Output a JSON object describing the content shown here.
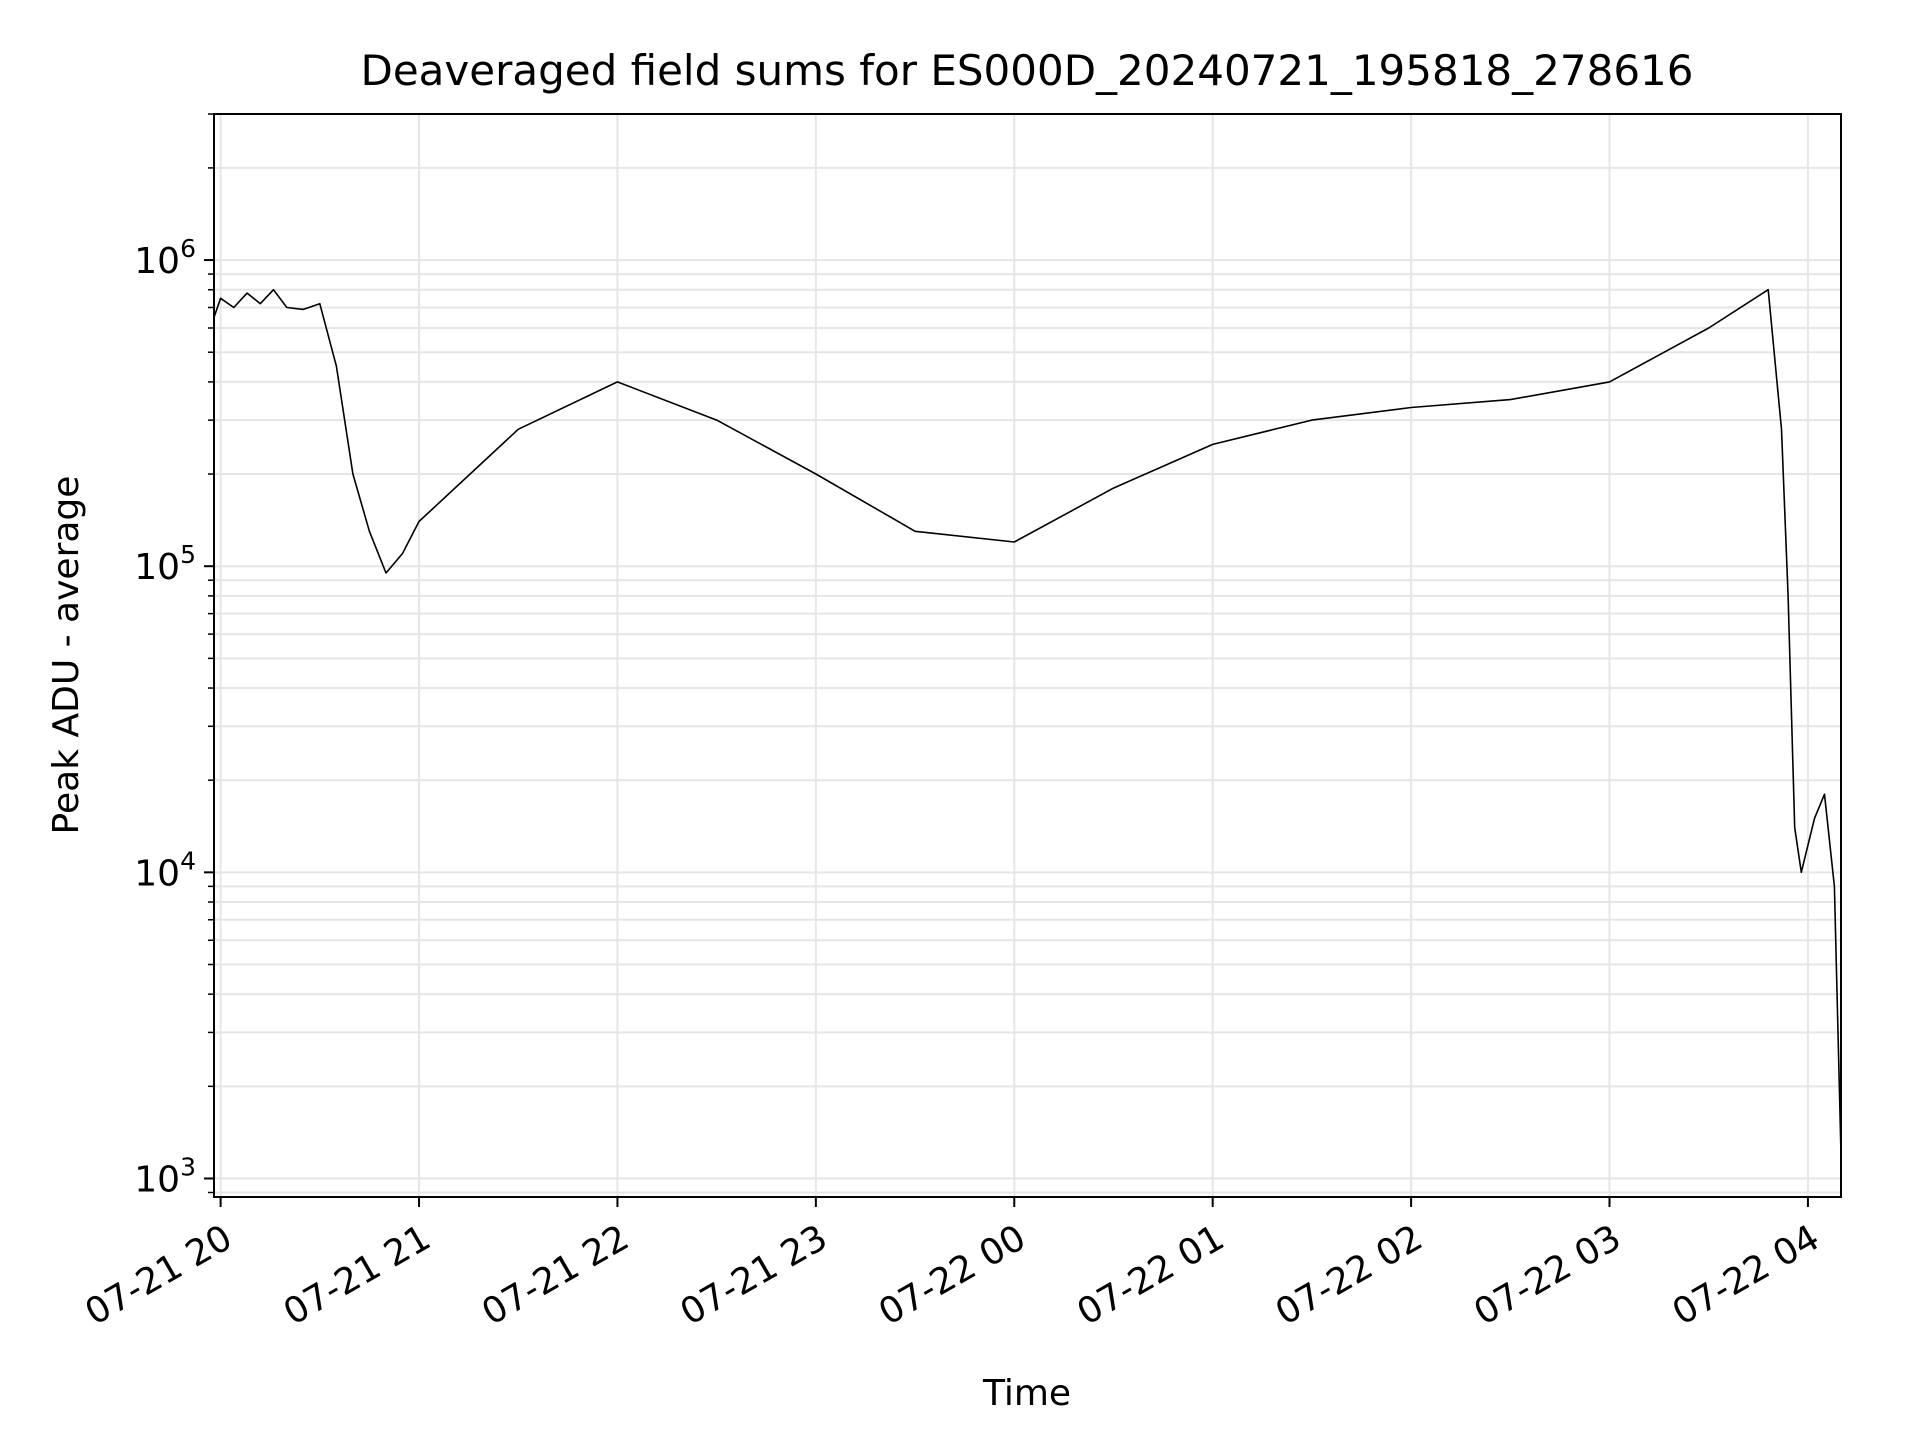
{
  "chart_data": {
    "type": "line",
    "title": "Deaveraged field sums for ES000D_20240721_195818_278616",
    "xlabel": "Time",
    "ylabel": "Peak ADU - average",
    "yscale": "log",
    "ylim": [
      870,
      3000000
    ],
    "xlim": [
      "2024-07-21 19:58",
      "2024-07-22 04:10"
    ],
    "grid": true,
    "line_color": "#000000",
    "x_ticks": [
      {
        "value": "2024-07-21 20:00",
        "label": "07-21 20"
      },
      {
        "value": "2024-07-21 21:00",
        "label": "07-21 21"
      },
      {
        "value": "2024-07-21 22:00",
        "label": "07-21 22"
      },
      {
        "value": "2024-07-21 23:00",
        "label": "07-21 23"
      },
      {
        "value": "2024-07-22 00:00",
        "label": "07-22 00"
      },
      {
        "value": "2024-07-22 01:00",
        "label": "07-22 01"
      },
      {
        "value": "2024-07-22 02:00",
        "label": "07-22 02"
      },
      {
        "value": "2024-07-22 03:00",
        "label": "07-22 03"
      },
      {
        "value": "2024-07-22 04:00",
        "label": "07-22 04"
      }
    ],
    "y_ticks": [
      {
        "value": 1000,
        "base": "10",
        "exp": "3"
      },
      {
        "value": 10000,
        "base": "10",
        "exp": "4"
      },
      {
        "value": 100000,
        "base": "10",
        "exp": "5"
      },
      {
        "value": 1000000,
        "base": "10",
        "exp": "6"
      }
    ],
    "series": [
      {
        "points": [
          {
            "x": "2024-07-21 19:58",
            "y": 650000
          },
          {
            "x": "2024-07-21 20:00",
            "y": 750000
          },
          {
            "x": "2024-07-21 20:04",
            "y": 700000
          },
          {
            "x": "2024-07-21 20:08",
            "y": 780000
          },
          {
            "x": "2024-07-21 20:12",
            "y": 720000
          },
          {
            "x": "2024-07-21 20:16",
            "y": 800000
          },
          {
            "x": "2024-07-21 20:20",
            "y": 700000
          },
          {
            "x": "2024-07-21 20:25",
            "y": 690000
          },
          {
            "x": "2024-07-21 20:30",
            "y": 720000
          },
          {
            "x": "2024-07-21 20:35",
            "y": 450000
          },
          {
            "x": "2024-07-21 20:40",
            "y": 200000
          },
          {
            "x": "2024-07-21 20:45",
            "y": 130000
          },
          {
            "x": "2024-07-21 20:50",
            "y": 95000
          },
          {
            "x": "2024-07-21 20:55",
            "y": 110000
          },
          {
            "x": "2024-07-21 21:00",
            "y": 140000
          },
          {
            "x": "2024-07-21 21:30",
            "y": 280000
          },
          {
            "x": "2024-07-21 22:00",
            "y": 400000
          },
          {
            "x": "2024-07-21 22:30",
            "y": 300000
          },
          {
            "x": "2024-07-21 23:00",
            "y": 200000
          },
          {
            "x": "2024-07-21 23:30",
            "y": 130000
          },
          {
            "x": "2024-07-22 00:00",
            "y": 120000
          },
          {
            "x": "2024-07-22 00:30",
            "y": 180000
          },
          {
            "x": "2024-07-22 01:00",
            "y": 250000
          },
          {
            "x": "2024-07-22 01:30",
            "y": 300000
          },
          {
            "x": "2024-07-22 02:00",
            "y": 330000
          },
          {
            "x": "2024-07-22 02:30",
            "y": 350000
          },
          {
            "x": "2024-07-22 03:00",
            "y": 400000
          },
          {
            "x": "2024-07-22 03:30",
            "y": 600000
          },
          {
            "x": "2024-07-22 03:48",
            "y": 800000
          },
          {
            "x": "2024-07-22 03:52",
            "y": 280000
          },
          {
            "x": "2024-07-22 03:54",
            "y": 80000
          },
          {
            "x": "2024-07-22 03:56",
            "y": 14000
          },
          {
            "x": "2024-07-22 03:58",
            "y": 10000
          },
          {
            "x": "2024-07-22 04:02",
            "y": 15000
          },
          {
            "x": "2024-07-22 04:05",
            "y": 18000
          },
          {
            "x": "2024-07-22 04:08",
            "y": 9000
          },
          {
            "x": "2024-07-22 04:10",
            "y": 1200
          }
        ]
      }
    ]
  }
}
